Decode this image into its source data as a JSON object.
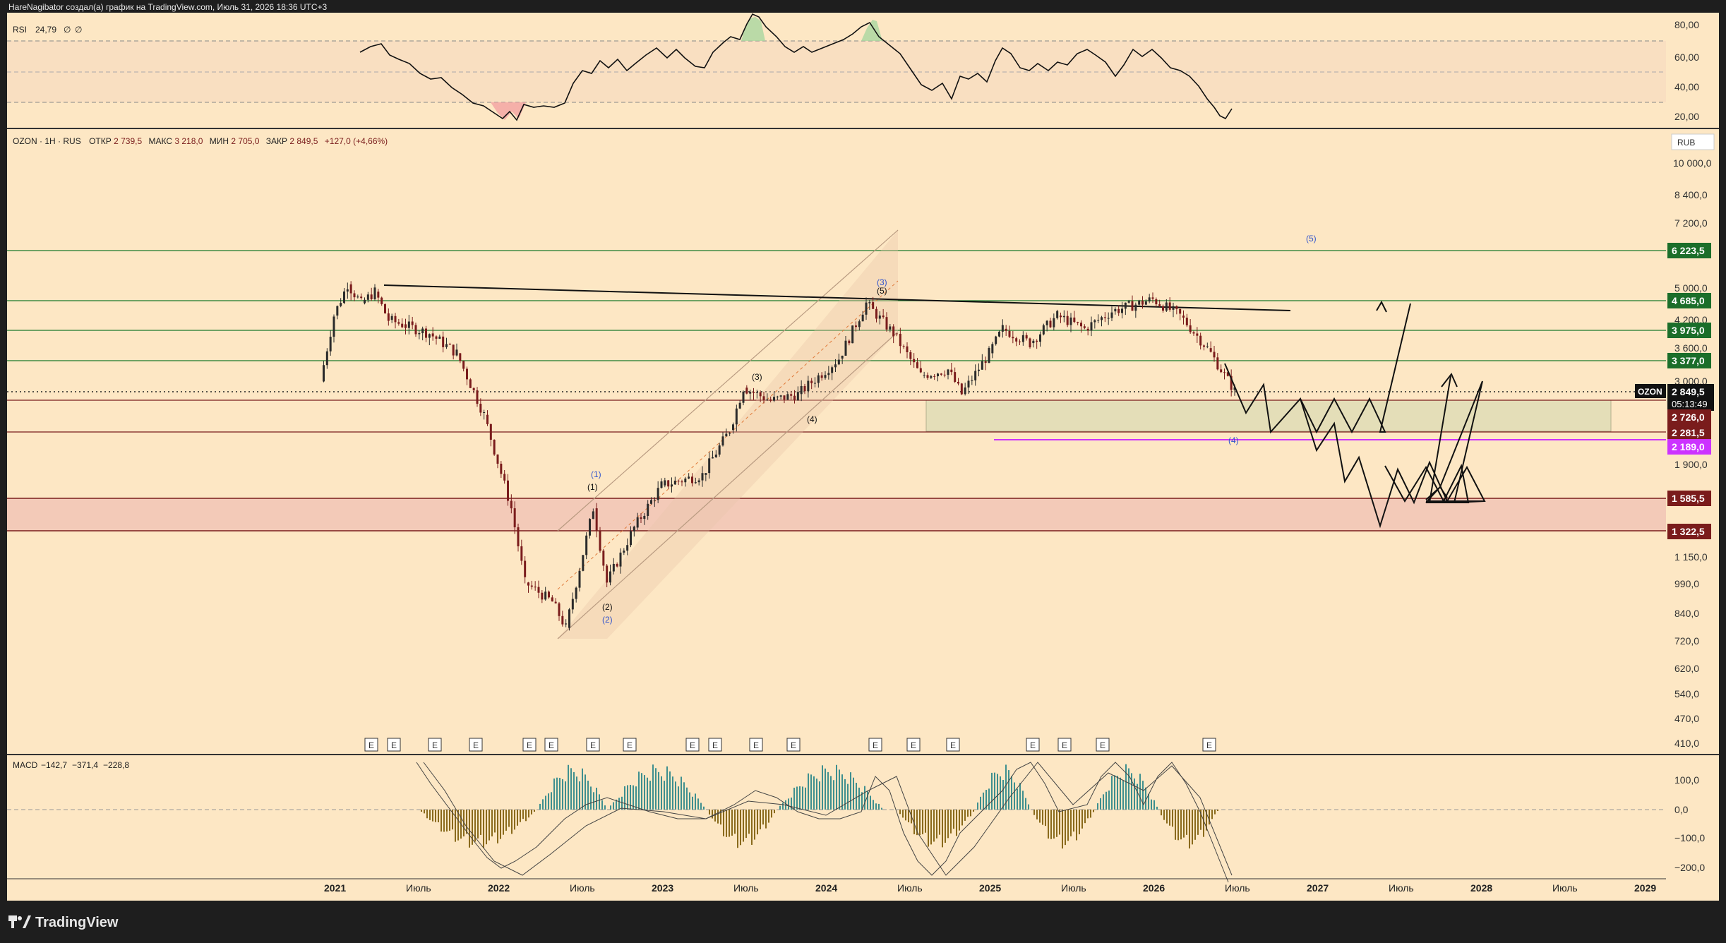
{
  "attribution": "HareNagibator создал(а) график на TradingView.com, Июль 31, 2026 18:36 UTC+3",
  "brand": {
    "name": "TradingView",
    "icon": "tradingview-logo-icon"
  },
  "rsi": {
    "label": "RSI",
    "values": "24,79",
    "extra1": "∅",
    "extra2": "∅",
    "ticks": [
      "80,00",
      "60,00",
      "40,00",
      "20,00"
    ]
  },
  "main": {
    "symbol": "OZON",
    "interval": "1Н",
    "exchange": "RUS",
    "open_label": "ОТКР",
    "open": "2 739,5",
    "high_label": "МАКС",
    "high": "3 218,0",
    "low_label": "МИН",
    "low": "2 705,0",
    "close_label": "ЗАКР",
    "close": "2 849,5",
    "change": "+127,0 (+4,66%)",
    "currency": "RUB",
    "price_ticks": [
      "10 000,0",
      "8 400,0",
      "7 200,0",
      "5 000,0",
      "4 200,0",
      "3 600,0",
      "3 000,0",
      "1 900,0",
      "1 150,0",
      "990,0",
      "840,0",
      "720,0",
      "620,0",
      "540,0",
      "470,0",
      "410,0"
    ],
    "level_labels": {
      "l6223": "6 223,5",
      "l4685": "4 685,0",
      "l3975": "3 975,0",
      "l3377": "3 377,0",
      "last_symbol": "OZON",
      "last_price": "2 849,5",
      "countdown": "05:13:49",
      "l2726": "2 726,0",
      "l2281": "2 281,5",
      "l2189": "2 189,0",
      "l1585": "1 585,5",
      "l1322": "1 322,5"
    },
    "colors": {
      "support_green": "#1b7a2b",
      "resistance_red": "#7a1c1c",
      "purple": "#cc33ff",
      "accent_box": "#1b6e2a"
    },
    "wave_labels": {
      "w1_black": "(1)",
      "w1_blue": "(1)",
      "w2_black": "(2)",
      "w2_blue": "(2)",
      "w3_black": "(3)",
      "w3_blue": "(3)",
      "w4_black": "(4)",
      "w4_blue": "(4)",
      "w5_black": "(5)",
      "w5_blue": "(5)"
    },
    "earnings_marker": "E"
  },
  "macd": {
    "label": "MACD",
    "v1": "−142,7",
    "v2": "−371,4",
    "v3": "−228,8",
    "ticks": [
      "100,0",
      "0,0",
      "−100,0",
      "−200,0"
    ]
  },
  "time_axis": [
    "2021",
    "Июль",
    "2022",
    "Июль",
    "2023",
    "Июль",
    "2024",
    "Июль",
    "2025",
    "Июль",
    "2026",
    "Июль",
    "2027",
    "Июль",
    "2028",
    "Июль",
    "2029"
  ],
  "chart_data": {
    "type": "candlestick",
    "symbol": "OZON",
    "currency": "RUB",
    "ohlc_last": {
      "open": 2739.5,
      "high": 3218.0,
      "low": 2705.0,
      "close": 2849.5,
      "change": 127.0,
      "change_pct": 4.66
    },
    "price_scale": "log",
    "horizontal_levels": [
      6223.5,
      4685.0,
      3975.0,
      3377.0,
      2849.5,
      2726.0,
      2281.5,
      2189.0,
      1585.5,
      1322.5
    ],
    "approx_price_path": [
      {
        "t": "2020-12",
        "p": 3000
      },
      {
        "t": "2021-01",
        "p": 4300
      },
      {
        "t": "2021-02",
        "p": 5100
      },
      {
        "t": "2021-03",
        "p": 4600
      },
      {
        "t": "2021-04",
        "p": 4900
      },
      {
        "t": "2021-05",
        "p": 4200
      },
      {
        "t": "2021-06",
        "p": 4100
      },
      {
        "t": "2021-08",
        "p": 3900
      },
      {
        "t": "2021-10",
        "p": 3500
      },
      {
        "t": "2021-12",
        "p": 2500
      },
      {
        "t": "2022-02",
        "p": 1500
      },
      {
        "t": "2022-03",
        "p": 1000
      },
      {
        "t": "2022-05",
        "p": 900
      },
      {
        "t": "2022-06",
        "p": 780
      },
      {
        "t": "2022-08",
        "p": 1500
      },
      {
        "t": "2022-09",
        "p": 1000
      },
      {
        "t": "2022-11",
        "p": 1350
      },
      {
        "t": "2023-01",
        "p": 1700
      },
      {
        "t": "2023-04",
        "p": 1800
      },
      {
        "t": "2023-06",
        "p": 2300
      },
      {
        "t": "2023-07",
        "p": 2900
      },
      {
        "t": "2023-09",
        "p": 2700
      },
      {
        "t": "2023-11",
        "p": 2800
      },
      {
        "t": "2024-02",
        "p": 3400
      },
      {
        "t": "2024-04",
        "p": 4600
      },
      {
        "t": "2024-06",
        "p": 3900
      },
      {
        "t": "2024-08",
        "p": 3100
      },
      {
        "t": "2024-10",
        "p": 3200
      },
      {
        "t": "2024-11",
        "p": 2800
      },
      {
        "t": "2025-01",
        "p": 3500
      },
      {
        "t": "2025-02",
        "p": 4000
      },
      {
        "t": "2025-04",
        "p": 3700
      },
      {
        "t": "2025-06",
        "p": 4300
      },
      {
        "t": "2025-08",
        "p": 4000
      },
      {
        "t": "2025-10",
        "p": 4400
      },
      {
        "t": "2026-01",
        "p": 4700
      },
      {
        "t": "2026-03",
        "p": 4300
      },
      {
        "t": "2026-05",
        "p": 3600
      },
      {
        "t": "2026-07",
        "p": 2850
      }
    ],
    "projection_path": [
      {
        "t": "2026-08",
        "p": 3300
      },
      {
        "t": "2026-09",
        "p": 2700
      },
      {
        "t": "2026-10",
        "p": 2950
      },
      {
        "t": "2026-11",
        "p": 2400
      },
      {
        "t": "2027-01",
        "p": 2700
      },
      {
        "t": "2027-02",
        "p": 2100
      },
      {
        "t": "2027-03",
        "p": 1850
      },
      {
        "t": "2027-04",
        "p": 1350
      },
      {
        "t": "2027-06",
        "p": 1600
      },
      {
        "t": "2027-07",
        "p": 1550
      },
      {
        "t": "2027-09",
        "p": 1600
      },
      {
        "t": "2027-11",
        "p": 3300
      }
    ],
    "alt_projection_path": [
      {
        "t": "2026-08",
        "p": 3300
      },
      {
        "t": "2026-11",
        "p": 2650
      },
      {
        "t": "2027-02",
        "p": 2700
      },
      {
        "t": "2027-04",
        "p": 2350
      },
      {
        "t": "2027-07",
        "p": 4600
      }
    ],
    "rsi": {
      "value": 24.79,
      "ylim": [
        15,
        85
      ],
      "levels": [
        70,
        50,
        30
      ]
    },
    "macd": {
      "macd": -142.7,
      "signal": -371.4,
      "histogram": -228.8,
      "ylim": [
        -230,
        150
      ]
    },
    "x_axis_ticks": [
      "2021",
      "Июль",
      "2022",
      "Июль",
      "2023",
      "Июль",
      "2024",
      "Июль",
      "2025",
      "Июль",
      "2026",
      "Июль",
      "2027",
      "Июль",
      "2028",
      "Июль",
      "2029"
    ]
  }
}
